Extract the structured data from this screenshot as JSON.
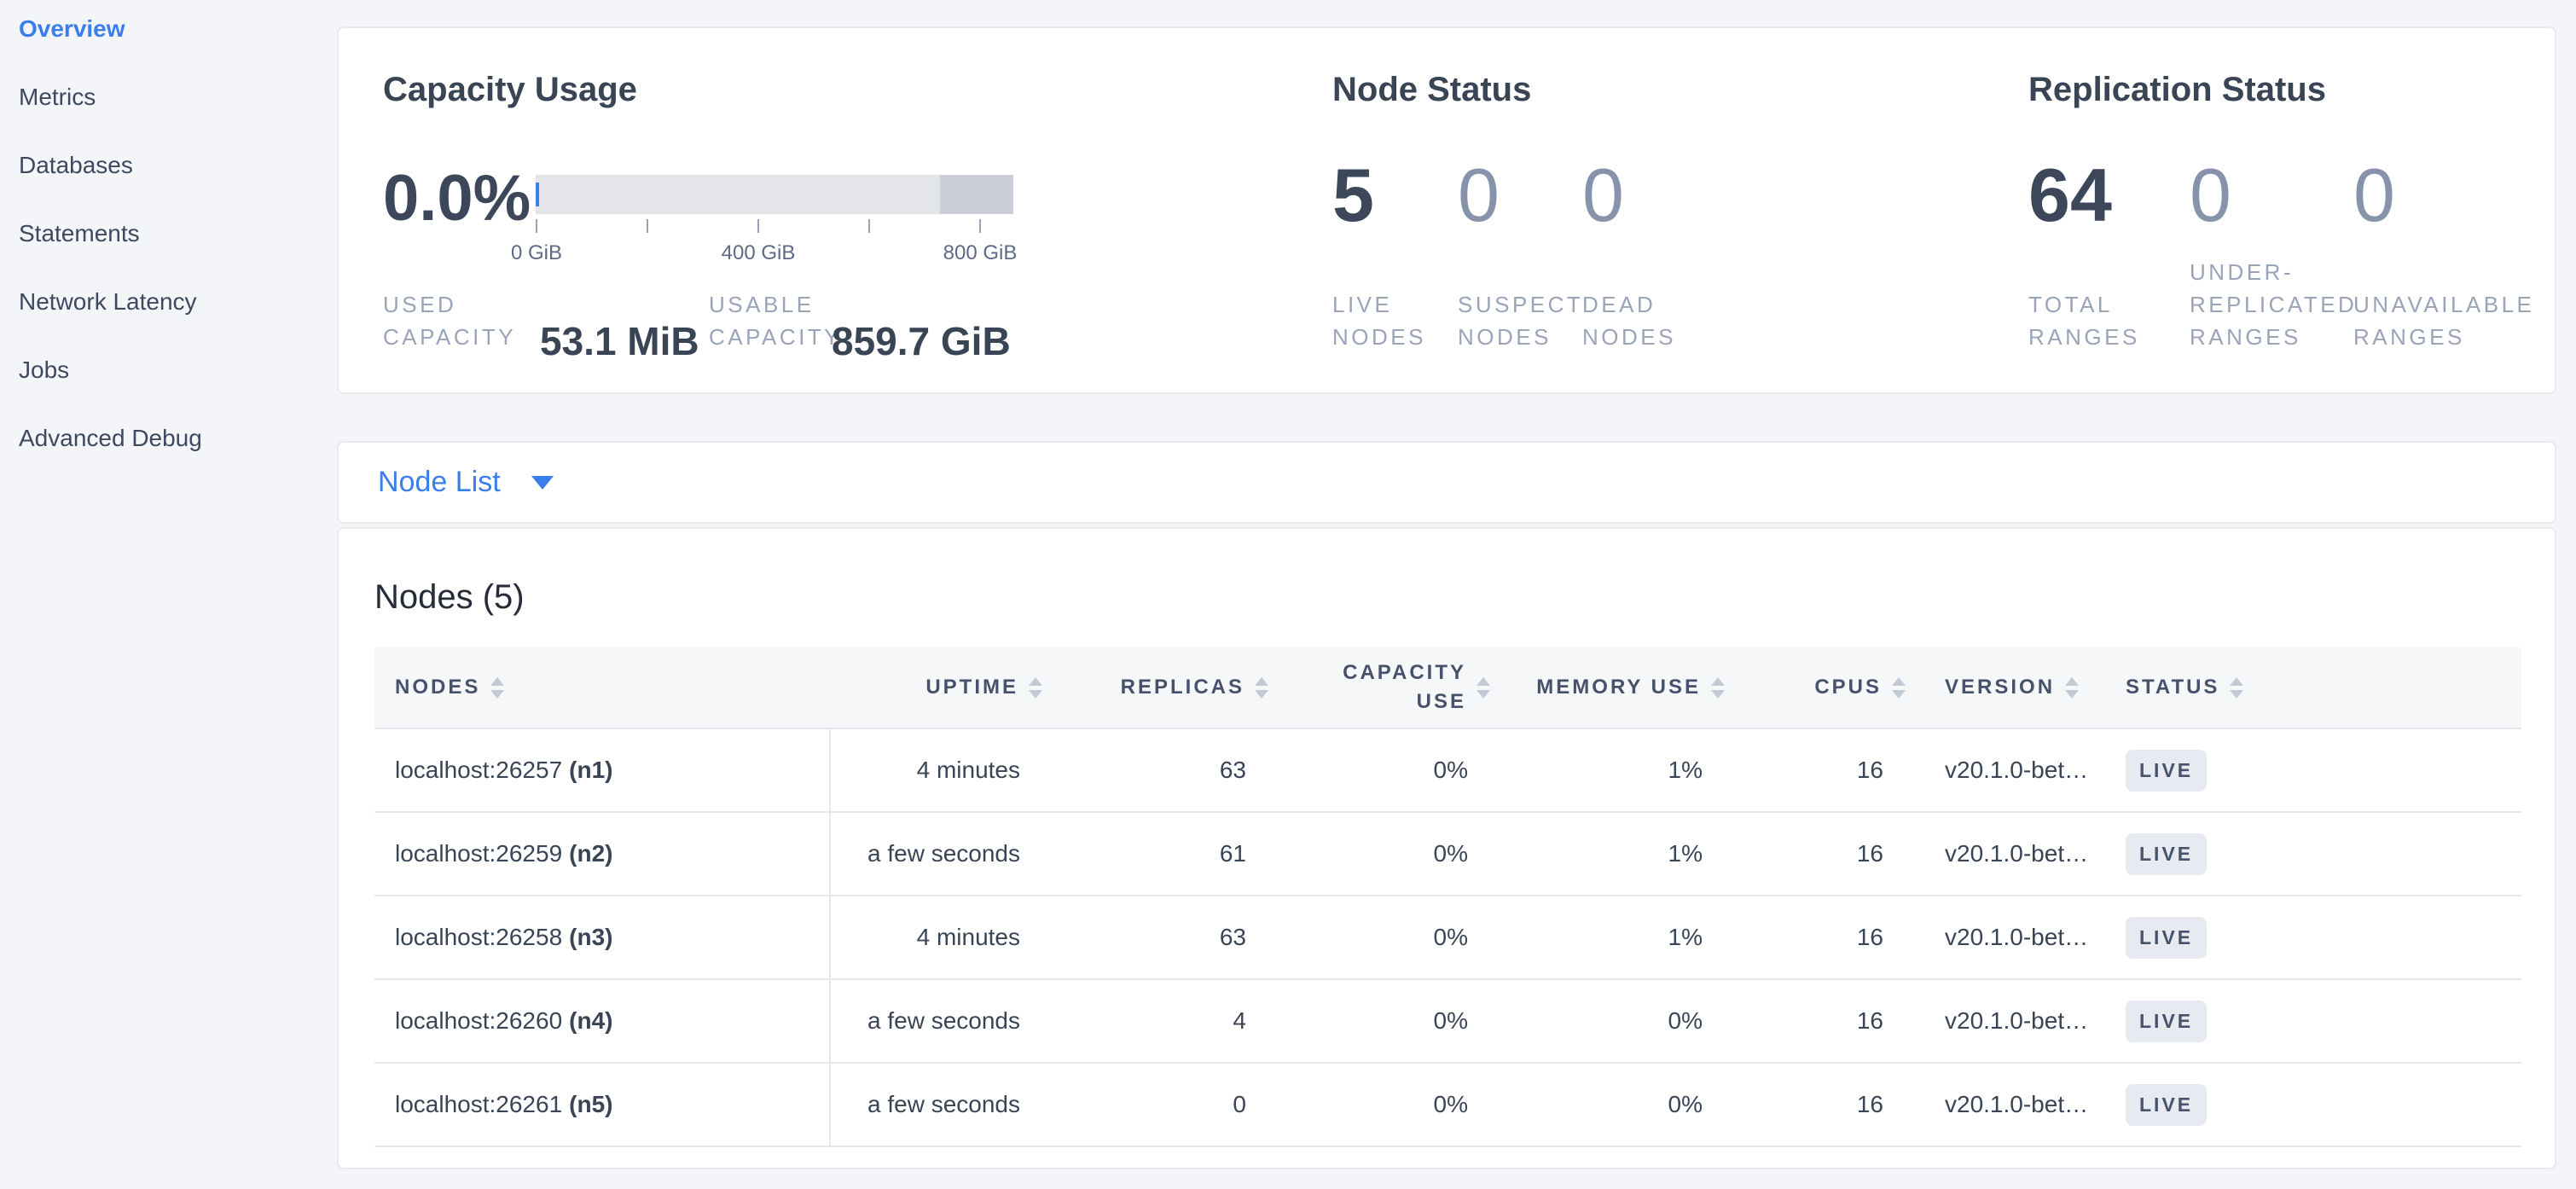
{
  "colors": {
    "accent_blue": "#3b7eeb",
    "text_dark": "#394455",
    "text_muted": "#9aa4b8",
    "page_background": "#f3f5f9",
    "badge_background": "#e8eaf1",
    "bar_light": "#e3e5eb",
    "bar_dark": "#cbcfd8"
  },
  "sidebar": {
    "items": [
      {
        "label": "Overview",
        "active": true
      },
      {
        "label": "Metrics",
        "active": false
      },
      {
        "label": "Databases",
        "active": false
      },
      {
        "label": "Statements",
        "active": false
      },
      {
        "label": "Network Latency",
        "active": false
      },
      {
        "label": "Jobs",
        "active": false
      },
      {
        "label": "Advanced Debug",
        "active": false
      }
    ]
  },
  "summary": {
    "capacity": {
      "title": "Capacity Usage",
      "percent": "0.0%",
      "axis_ticks": [
        "0 GiB",
        "400 GiB",
        "800 GiB"
      ],
      "used_label": "USED\nCAPACITY",
      "used_value": "53.1 MiB",
      "usable_label": "USABLE\nCAPACITY",
      "usable_value": "859.7 GiB"
    },
    "node_status": {
      "title": "Node Status",
      "stats": [
        {
          "value": "5",
          "label": "LIVE\nNODES",
          "emphasis": true
        },
        {
          "value": "0",
          "label": "SUSPECT\nNODES",
          "emphasis": false
        },
        {
          "value": "0",
          "label": "DEAD\nNODES",
          "emphasis": false
        }
      ]
    },
    "replication": {
      "title": "Replication Status",
      "stats": [
        {
          "value": "64",
          "label": "TOTAL\nRANGES",
          "emphasis": true
        },
        {
          "value": "0",
          "label": "UNDER-\nREPLICATED\nRANGES",
          "emphasis": false
        },
        {
          "value": "0",
          "label": "UNAVAILABLE\nRANGES",
          "emphasis": false
        }
      ]
    }
  },
  "node_list": {
    "selector_label": "Node List",
    "heading": "Nodes (5)",
    "table": {
      "columns": [
        {
          "id": "nodes",
          "label": "NODES",
          "align": "left"
        },
        {
          "id": "uptime",
          "label": "UPTIME",
          "align": "right"
        },
        {
          "id": "replicas",
          "label": "REPLICAS",
          "align": "right"
        },
        {
          "id": "capacity_use",
          "label": "CAPACITY USE",
          "align": "right"
        },
        {
          "id": "memory_use",
          "label": "MEMORY USE",
          "align": "right"
        },
        {
          "id": "cpus",
          "label": "CPUS",
          "align": "right"
        },
        {
          "id": "version",
          "label": "VERSION",
          "align": "left"
        },
        {
          "id": "status",
          "label": "STATUS",
          "align": "left"
        }
      ],
      "rows": [
        {
          "node": "localhost:26257",
          "node_id": "(n1)",
          "uptime": "4 minutes",
          "replicas": "63",
          "capacity_use": "0%",
          "memory_use": "1%",
          "cpus": "16",
          "version": "v20.1.0-bet…",
          "status": "LIVE"
        },
        {
          "node": "localhost:26259",
          "node_id": "(n2)",
          "uptime": "a few seconds",
          "replicas": "61",
          "capacity_use": "0%",
          "memory_use": "1%",
          "cpus": "16",
          "version": "v20.1.0-bet…",
          "status": "LIVE"
        },
        {
          "node": "localhost:26258",
          "node_id": "(n3)",
          "uptime": "4 minutes",
          "replicas": "63",
          "capacity_use": "0%",
          "memory_use": "1%",
          "cpus": "16",
          "version": "v20.1.0-bet…",
          "status": "LIVE"
        },
        {
          "node": "localhost:26260",
          "node_id": "(n4)",
          "uptime": "a few seconds",
          "replicas": "4",
          "capacity_use": "0%",
          "memory_use": "0%",
          "cpus": "16",
          "version": "v20.1.0-bet…",
          "status": "LIVE"
        },
        {
          "node": "localhost:26261",
          "node_id": "(n5)",
          "uptime": "a few seconds",
          "replicas": "0",
          "capacity_use": "0%",
          "memory_use": "0%",
          "cpus": "16",
          "version": "v20.1.0-bet…",
          "status": "LIVE"
        }
      ]
    }
  }
}
